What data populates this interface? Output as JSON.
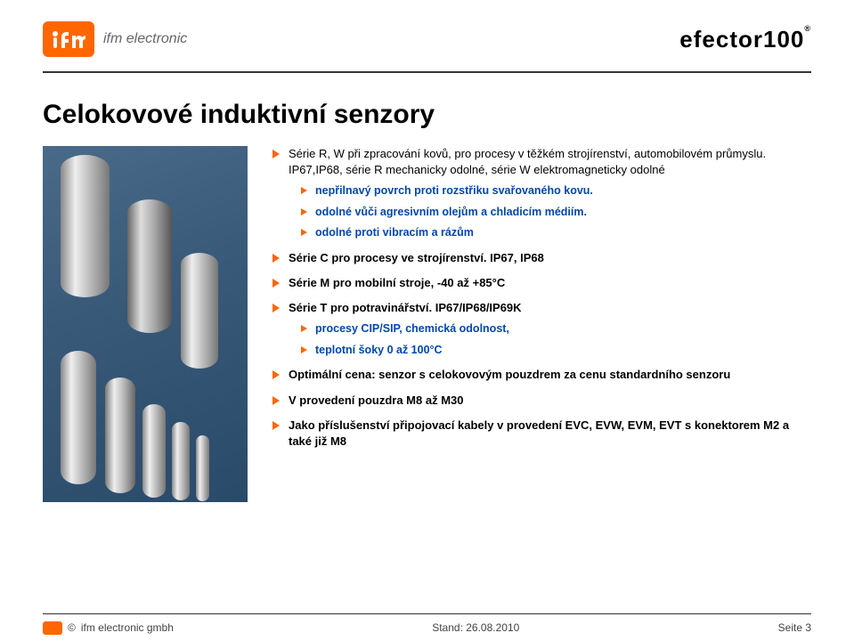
{
  "header": {
    "logo_ifm_text": "ifm electronic",
    "logo_right": "efector100",
    "logo_right_reg": "®"
  },
  "title": "Celokovové induktivní senzory",
  "colors": {
    "accent": "#ff6600",
    "sub_text": "#0047ab",
    "text": "#000000",
    "rule": "#333333"
  },
  "bullets": [
    {
      "text": "Série R, W při zpracování kovů, pro procesy v těžkém strojírenství, automobilovém průmyslu. IP67,IP68, série R mechanicky odolné, série W elektromagneticky odolné",
      "sub": [
        "nepřilnavý povrch proti rozstřiku svařovaného kovu.",
        "odolné vůči agresivním olejům a chladicím médiím.",
        "odolné proti vibracím a rázům"
      ]
    },
    {
      "text": "Série C pro procesy ve strojírenství. IP67, IP68",
      "bold": true
    },
    {
      "text": "Série M pro mobilní stroje, -40 až +85°C",
      "bold": true
    },
    {
      "text": "Série T pro potravinářství. IP67/IP68/IP69K",
      "bold": true,
      "sub": [
        "procesy CIP/SIP, chemická odolnost,",
        "teplotní šoky  0 až 100°C"
      ]
    },
    {
      "text": "Optimální cena: senzor s celokovovým pouzdrem za cenu standardního senzoru",
      "bold": true
    },
    {
      "text": "V provedení pouzdra M8 až M30",
      "bold": true
    },
    {
      "text": "Jako příslušenství připojovací kabely v provedení EVC, EVW, EVM, EVT s konektorem M2 a také již M8",
      "bold": true
    }
  ],
  "footer": {
    "copyright": "©",
    "company": "ifm electronic gmbh",
    "stand": "Stand: 26.08.2010",
    "page": "Seite 3"
  }
}
